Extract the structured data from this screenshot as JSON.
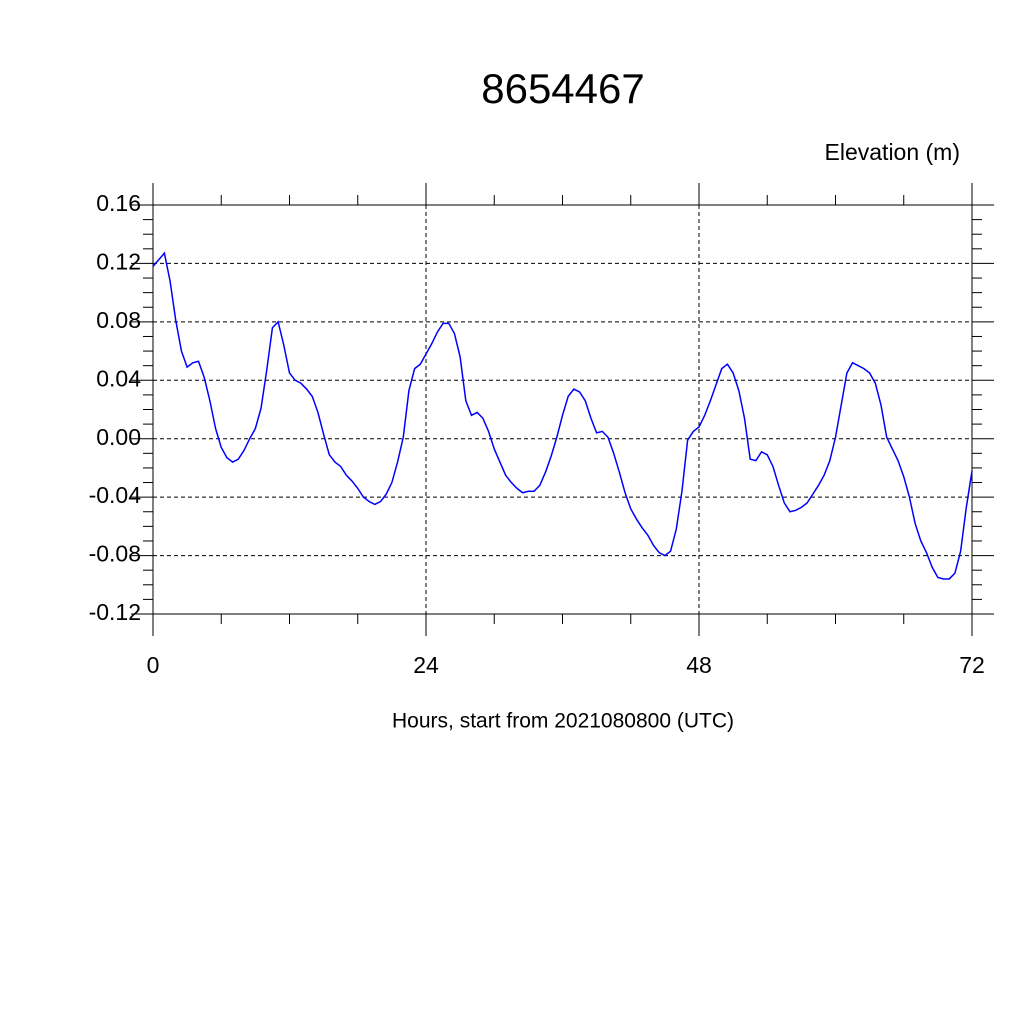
{
  "chart_data": {
    "type": "line",
    "title": "8654467",
    "y_label": "Elevation (m)",
    "x_label": "Hours, start from 2021080800 (UTC)",
    "x": [
      0,
      1,
      1.5,
      2,
      2.5,
      3,
      3.5,
      4,
      4.5,
      5,
      5.5,
      6,
      6.5,
      7,
      7.5,
      8,
      8.5,
      9,
      9.5,
      10,
      10.5,
      11,
      11.5,
      12,
      12.5,
      13,
      13.5,
      14,
      14.5,
      15,
      15.5,
      16,
      16.5,
      17,
      17.5,
      18,
      18.5,
      19,
      19.5,
      20,
      20.5,
      21,
      21.5,
      22,
      22.5,
      23,
      23.5,
      24,
      24.5,
      25,
      25.5,
      26,
      26.5,
      27,
      27.5,
      28,
      28.5,
      29,
      29.5,
      30,
      30.5,
      31,
      31.5,
      32,
      32.5,
      33,
      33.5,
      34,
      34.5,
      35,
      35.5,
      36,
      36.5,
      37,
      37.5,
      38,
      38.5,
      39,
      39.5,
      40,
      40.5,
      41,
      41.5,
      42,
      42.5,
      43,
      43.5,
      44,
      44.5,
      45,
      45.5,
      46,
      46.5,
      47,
      47.5,
      48,
      48.5,
      49,
      49.5,
      50,
      50.5,
      51,
      51.5,
      52,
      52.5,
      53,
      53.5,
      54,
      54.5,
      55,
      55.5,
      56,
      56.5,
      57,
      57.5,
      58,
      58.5,
      59,
      59.5,
      60,
      60.5,
      61,
      61.5,
      62,
      62.5,
      63,
      63.5,
      64,
      64.5,
      65,
      65.5,
      66,
      66.5,
      67,
      67.5,
      68,
      68.5,
      69,
      69.5,
      70,
      70.5,
      71,
      71.5,
      72
    ],
    "series": [
      {
        "name": "Elevation",
        "color": "#0000ff",
        "values": [
          0.118,
          0.127,
          0.108,
          0.081,
          0.06,
          0.049,
          0.052,
          0.053,
          0.042,
          0.026,
          0.007,
          -0.006,
          -0.013,
          -0.016,
          -0.014,
          -0.008,
          0,
          0.007,
          0.021,
          0.047,
          0.076,
          0.08,
          0.064,
          0.045,
          0.04,
          0.038,
          0.034,
          0.029,
          0.018,
          0.003,
          -0.011,
          -0.016,
          -0.019,
          -0.025,
          -0.029,
          -0.034,
          -0.04,
          -0.043,
          -0.045,
          -0.043,
          -0.038,
          -0.03,
          -0.016,
          0.001,
          0.033,
          0.048,
          0.051,
          0.058,
          0.065,
          0.073,
          0.079,
          0.079,
          0.072,
          0.056,
          0.026,
          0.016,
          0.018,
          0.014,
          0.005,
          -0.007,
          -0.016,
          -0.025,
          -0.03,
          -0.034,
          -0.037,
          -0.036,
          -0.036,
          -0.032,
          -0.023,
          -0.012,
          0.001,
          0.016,
          0.029,
          0.034,
          0.032,
          0.026,
          0.014,
          0.004,
          0.005,
          0.001,
          -0.01,
          -0.023,
          -0.037,
          -0.048,
          -0.055,
          -0.061,
          -0.066,
          -0.073,
          -0.078,
          -0.08,
          -0.077,
          -0.062,
          -0.036,
          -0.001,
          0.005,
          0.008,
          0.016,
          0.026,
          0.037,
          0.048,
          0.051,
          0.045,
          0.033,
          0.014,
          -0.014,
          -0.015,
          -0.009,
          -0.011,
          -0.019,
          -0.032,
          -0.044,
          -0.05,
          -0.049,
          -0.047,
          -0.044,
          -0.038,
          -0.032,
          -0.025,
          -0.015,
          0.001,
          0.023,
          0.045,
          0.052,
          0.05,
          0.048,
          0.045,
          0.038,
          0.023,
          0.001,
          -0.007,
          -0.015,
          -0.026,
          -0.04,
          -0.058,
          -0.07,
          -0.078,
          -0.088,
          -0.095,
          -0.096,
          -0.096,
          -0.092,
          -0.077,
          -0.047,
          -0.022
        ]
      }
    ],
    "xlim": [
      0,
      72
    ],
    "xticks": [
      0,
      24,
      48,
      72
    ],
    "xminorticks": [
      6,
      12,
      18,
      30,
      36,
      42,
      54,
      60,
      66
    ],
    "ylim": [
      -0.12,
      0.16
    ],
    "yticks": [
      0.16,
      0.12,
      0.08,
      0.04,
      {
        "value": 0,
        "label": "0.00"
      },
      -0.04,
      -0.08,
      -0.12
    ],
    "yminorticks": [
      0.15,
      0.14,
      0.13,
      0.11,
      0.1,
      0.09,
      0.07,
      0.06,
      0.05,
      0.03,
      0.02,
      0.01,
      -0.01,
      -0.02,
      -0.03,
      -0.05,
      -0.06,
      -0.07,
      -0.09,
      -0.1,
      -0.11
    ],
    "grid": true
  }
}
